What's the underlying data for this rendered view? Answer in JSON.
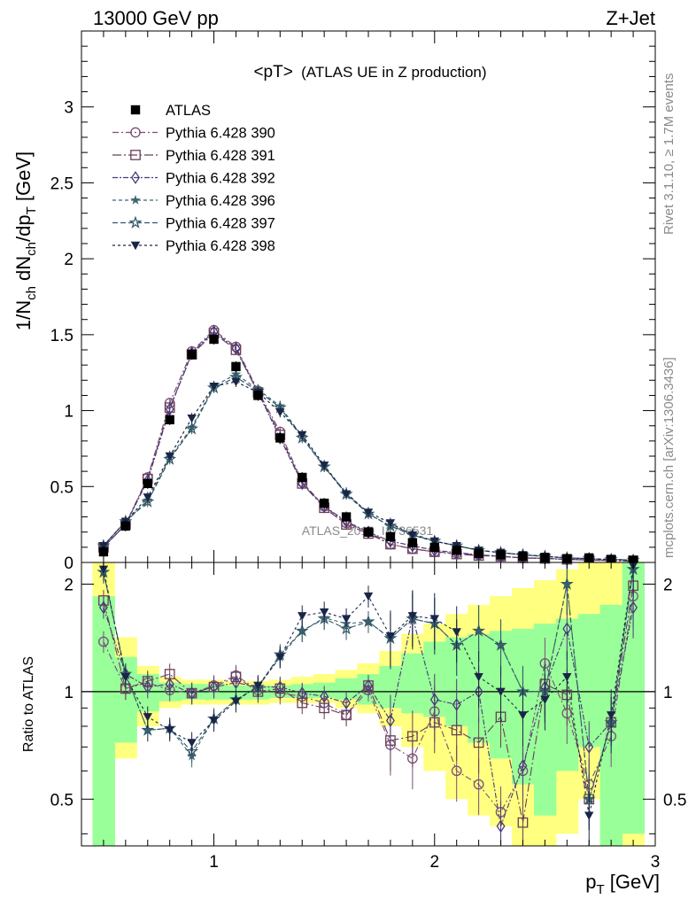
{
  "header": {
    "energy_label": "13000 GeV pp",
    "process_label": "Z+Jet"
  },
  "chart_title_main": "<pT>",
  "chart_title_sub": "(ATLAS UE in Z production)",
  "side_labels": {
    "rivet": "Rivet 3.1.10, ≥ 1.7M events",
    "mcplots": "mcplots.cern.ch [arXiv:1306.3436]"
  },
  "watermark": "ATLAS_2019_I1736531",
  "colors": {
    "band_inner": "#99ff99",
    "band_outer": "#ffff80",
    "p390": "#7a4f7a",
    "p391": "#6b3f55",
    "p392": "#4b3a7a",
    "p396": "#3c6670",
    "p397": "#335866",
    "p398": "#1a2548"
  },
  "chart_data": [
    {
      "name": "main",
      "type": "scatter",
      "ylabel": "1/N_ch dN_ch/dp_T [GeV]",
      "ylabel_parts": {
        "a": "1/N",
        "a_sub": "ch",
        "b": " dN",
        "b_sub": "ch",
        "c": "/dp",
        "c_sub": "T",
        "d": " [GeV]"
      },
      "ylim": [
        0,
        3.5
      ],
      "y_ticks": [
        "0",
        "0.5",
        "1",
        "1.5",
        "2",
        "2.5",
        "3"
      ],
      "xlim": [
        0.4,
        3.0
      ],
      "grid": false,
      "legend_position": "top-left",
      "x": [
        0.5,
        0.6,
        0.7,
        0.8,
        0.9,
        1.0,
        1.1,
        1.2,
        1.3,
        1.4,
        1.5,
        1.6,
        1.7,
        1.8,
        1.9,
        2.0,
        2.1,
        2.2,
        2.3,
        2.4,
        2.5,
        2.6,
        2.7,
        2.8,
        2.9
      ],
      "data": {
        "name": "ATLAS",
        "values": [
          0.07,
          0.24,
          0.52,
          0.94,
          1.37,
          1.47,
          1.29,
          1.1,
          0.82,
          0.56,
          0.39,
          0.3,
          0.2,
          0.17,
          0.13,
          0.1,
          0.08,
          0.06,
          0.05,
          0.04,
          0.03,
          0.025,
          0.03,
          0.02,
          0.015
        ]
      },
      "series": [
        {
          "name": "Pythia 6.428 390",
          "marker": "circle-open",
          "dash": "7,3,2,3",
          "color_key": "p390",
          "values": [
            0.1,
            0.25,
            0.56,
            1.05,
            1.39,
            1.53,
            1.42,
            1.13,
            0.86,
            0.53,
            0.37,
            0.26,
            0.2,
            0.12,
            0.09,
            0.07,
            0.06,
            0.05,
            0.04,
            0.03,
            0.028,
            0.02,
            0.018,
            0.015,
            0.01
          ]
        },
        {
          "name": "Pythia 6.428 391",
          "marker": "square-open",
          "dash": "10,3,2,3",
          "color_key": "p391",
          "values": [
            0.1,
            0.25,
            0.55,
            1.02,
            1.37,
            1.51,
            1.4,
            1.12,
            0.84,
            0.52,
            0.36,
            0.25,
            0.19,
            0.12,
            0.09,
            0.07,
            0.055,
            0.045,
            0.04,
            0.03,
            0.026,
            0.02,
            0.016,
            0.012,
            0.01
          ]
        },
        {
          "name": "Pythia 6.428 392",
          "marker": "diamond-open",
          "dash": "6,2,2,2",
          "color_key": "p392",
          "values": [
            0.1,
            0.25,
            0.54,
            1.01,
            1.38,
            1.52,
            1.41,
            1.12,
            0.82,
            0.52,
            0.37,
            0.27,
            0.2,
            0.14,
            0.11,
            0.08,
            0.065,
            0.05,
            0.04,
            0.03,
            0.027,
            0.02,
            0.017,
            0.013,
            0.01
          ]
        },
        {
          "name": "Pythia 6.428 396",
          "marker": "star-filled",
          "dash": "4,3",
          "color_key": "p396",
          "values": [
            0.11,
            0.27,
            0.41,
            0.69,
            0.89,
            1.16,
            1.24,
            1.14,
            1.03,
            0.83,
            0.63,
            0.46,
            0.32,
            0.24,
            0.19,
            0.14,
            0.11,
            0.08,
            0.065,
            0.05,
            0.04,
            0.03,
            0.025,
            0.02,
            0.015
          ]
        },
        {
          "name": "Pythia 6.428 397",
          "marker": "star-open",
          "dash": "6,3",
          "color_key": "p397",
          "values": [
            0.11,
            0.27,
            0.4,
            0.68,
            0.88,
            1.15,
            1.22,
            1.13,
            1.02,
            0.82,
            0.63,
            0.45,
            0.32,
            0.24,
            0.18,
            0.14,
            0.11,
            0.08,
            0.065,
            0.05,
            0.04,
            0.03,
            0.025,
            0.02,
            0.015
          ]
        },
        {
          "name": "Pythia 6.428 398",
          "marker": "triangle-down-filled",
          "dash": "3,3",
          "color_key": "p398",
          "values": [
            0.11,
            0.27,
            0.43,
            0.7,
            0.95,
            1.16,
            1.19,
            1.12,
            0.99,
            0.84,
            0.64,
            0.45,
            0.33,
            0.26,
            0.18,
            0.14,
            0.11,
            0.08,
            0.065,
            0.05,
            0.04,
            0.03,
            0.025,
            0.02,
            0.015
          ]
        }
      ]
    },
    {
      "name": "ratio",
      "type": "scatter",
      "ylabel": "Ratio to ATLAS",
      "ylim": [
        0.37,
        2.3
      ],
      "y_ticks": [
        "0.5",
        "1",
        "2"
      ],
      "xlabel": "p_T [GeV]",
      "xlabel_parts": {
        "a": "p",
        "a_sub": "T",
        "b": " [GeV]"
      },
      "x_ticks": [
        "1",
        "2",
        "3"
      ],
      "xlim": [
        0.4,
        3.0
      ],
      "band_bins": [
        0.45,
        0.55,
        0.65,
        0.75,
        0.85,
        0.95,
        1.05,
        1.15,
        1.25,
        1.35,
        1.45,
        1.55,
        1.65,
        1.75,
        1.85,
        1.95,
        2.05,
        2.15,
        2.25,
        2.35,
        2.45,
        2.55,
        2.65,
        2.75,
        2.85,
        2.95
      ],
      "band_inner": {
        "low": [
          0.37,
          0.72,
          0.88,
          0.94,
          0.95,
          0.95,
          0.95,
          0.95,
          0.96,
          0.96,
          0.96,
          0.95,
          0.92,
          0.9,
          0.87,
          0.85,
          0.8,
          0.72,
          0.65,
          0.55,
          0.45,
          0.6,
          0.7,
          0.37,
          0.4
        ],
        "high": [
          1.85,
          1.25,
          1.12,
          1.06,
          1.05,
          1.05,
          1.04,
          1.04,
          1.04,
          1.05,
          1.06,
          1.09,
          1.12,
          1.18,
          1.28,
          1.38,
          1.42,
          1.45,
          1.48,
          1.5,
          1.55,
          1.6,
          1.65,
          1.75,
          2.3
        ]
      },
      "band_outer": {
        "low": [
          0.37,
          0.65,
          0.8,
          0.9,
          0.92,
          0.92,
          0.92,
          0.92,
          0.93,
          0.93,
          0.93,
          0.9,
          0.87,
          0.8,
          0.7,
          0.6,
          0.5,
          0.45,
          0.42,
          0.37,
          0.37,
          0.4,
          0.5,
          0.37,
          0.37
        ],
        "high": [
          2.3,
          1.42,
          1.18,
          1.1,
          1.08,
          1.08,
          1.07,
          1.07,
          1.08,
          1.1,
          1.12,
          1.15,
          1.2,
          1.3,
          1.45,
          1.55,
          1.65,
          1.75,
          1.85,
          1.95,
          2.05,
          2.2,
          2.3,
          2.3,
          2.3
        ]
      },
      "x": [
        0.5,
        0.6,
        0.7,
        0.8,
        0.9,
        1.0,
        1.1,
        1.2,
        1.3,
        1.4,
        1.5,
        1.6,
        1.7,
        1.8,
        1.9,
        2.0,
        2.1,
        2.2,
        2.3,
        2.4,
        2.5,
        2.6,
        2.7,
        2.8,
        2.9
      ],
      "series": [
        {
          "name": "Pythia 6.428 390",
          "values": [
            1.38,
            1.02,
            1.06,
            1.01,
            0.99,
            1.04,
            1.11,
            1.01,
            0.99,
            0.97,
            0.93,
            0.86,
            1.01,
            0.71,
            0.65,
            0.88,
            0.6,
            0.55,
            0.46,
            0.6,
            1.2,
            0.87,
            0.55,
            0.75,
            1.85
          ]
        },
        {
          "name": "Pythia 6.428 391",
          "values": [
            1.8,
            1.02,
            1.07,
            1.12,
            0.99,
            1.03,
            1.1,
            1.0,
            1.02,
            0.93,
            0.9,
            0.86,
            1.04,
            0.73,
            0.75,
            0.82,
            0.78,
            0.72,
            0.85,
            0.43,
            1.05,
            0.98,
            0.5,
            0.82,
            1.98
          ]
        },
        {
          "name": "Pythia 6.428 392",
          "values": [
            1.72,
            1.12,
            1.03,
            1.05,
            0.99,
            1.03,
            1.06,
            1.03,
            1.03,
            0.99,
            0.97,
            0.93,
            1.04,
            0.83,
            1.62,
            0.95,
            0.92,
            1.0,
            0.42,
            0.62,
            1.03,
            1.5,
            0.7,
            0.82,
            1.72
          ]
        },
        {
          "name": "Pythia 6.428 396",
          "values": [
            2.16,
            1.12,
            0.78,
            0.79,
            0.66,
            0.84,
            0.95,
            1.03,
            1.25,
            1.48,
            1.61,
            1.55,
            1.57,
            1.41,
            1.6,
            1.55,
            1.35,
            1.48,
            1.35,
            1.0,
            1.0,
            2.0,
            0.5,
            0.82,
            2.2
          ]
        },
        {
          "name": "Pythia 6.428 397",
          "values": [
            2.16,
            1.12,
            0.78,
            0.79,
            0.68,
            0.84,
            0.95,
            1.03,
            1.27,
            1.48,
            1.6,
            1.5,
            1.57,
            1.41,
            1.6,
            1.55,
            1.35,
            1.48,
            1.35,
            1.0,
            1.0,
            2.0,
            0.5,
            0.82,
            2.2
          ]
        },
        {
          "name": "Pythia 6.428 398",
          "values": [
            2.2,
            1.1,
            0.85,
            0.78,
            0.72,
            0.83,
            0.94,
            1.04,
            1.25,
            1.63,
            1.67,
            1.6,
            1.85,
            1.43,
            1.63,
            1.6,
            1.47,
            1.1,
            1.0,
            0.86,
            0.95,
            1.1,
            0.45,
            0.86,
            2.25
          ]
        }
      ]
    }
  ]
}
